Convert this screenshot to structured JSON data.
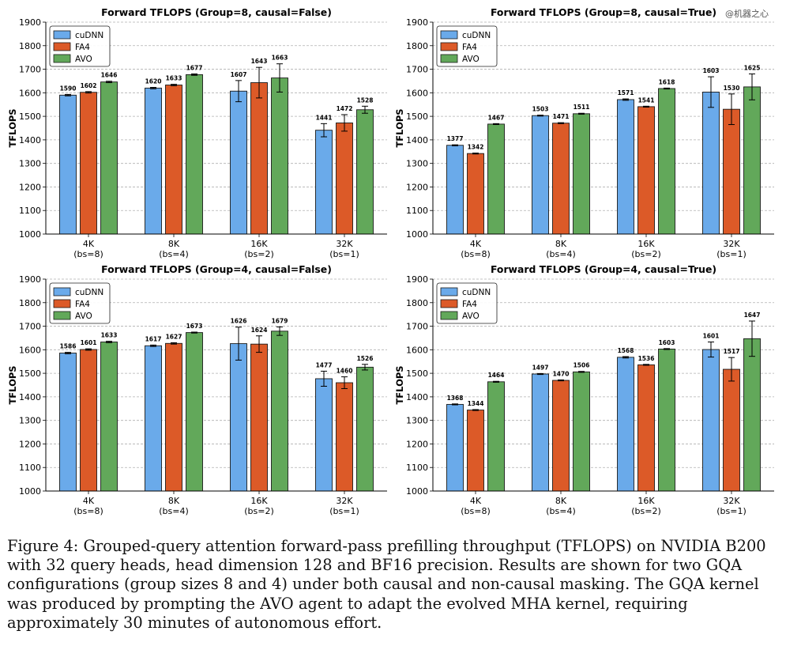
{
  "watermark": "@机器之心",
  "caption": "Figure 4: Grouped-query attention forward-pass prefilling throughput (TFLOPS) on NVIDIA B200 with 32 query heads, head dimension 128 and BF16 precision. Results are shown for two GQA configurations (group sizes 8 and 4) under both causal and non-causal masking. The GQA kernel was produced by prompting the AVO agent to adapt the evolved MHA kernel, requiring approximately 30 minutes of autonomous effort.",
  "colors": {
    "cuDNN": "#6aaaea",
    "FA4": "#dc5a28",
    "AVO": "#62a85a"
  },
  "chart_data": [
    {
      "type": "bar",
      "title": "Forward TFLOPS (Group=8, causal=False)",
      "ylabel": "TFLOPS",
      "ylim": [
        1000,
        1900
      ],
      "yticks": [
        "1000",
        "1100",
        "1200",
        "1300",
        "1400",
        "1500",
        "1600",
        "1700",
        "1800",
        "1900"
      ],
      "grid": "y-dashed",
      "legend": "top-left",
      "categories": [
        "4K",
        "8K",
        "16K",
        "32K"
      ],
      "subcategories": [
        "(bs=8)",
        "(bs=4)",
        "(bs=2)",
        "(bs=1)"
      ],
      "series": [
        {
          "name": "cuDNN",
          "values": [
            1590,
            1620,
            1607,
            1441
          ],
          "errors": [
            3,
            3,
            45,
            28
          ]
        },
        {
          "name": "FA4",
          "values": [
            1602,
            1633,
            1643,
            1472
          ],
          "errors": [
            3,
            3,
            65,
            35
          ]
        },
        {
          "name": "AVO",
          "values": [
            1646,
            1677,
            1663,
            1528
          ],
          "errors": [
            3,
            3,
            60,
            15
          ]
        }
      ]
    },
    {
      "type": "bar",
      "title": "Forward TFLOPS (Group=8, causal=True)",
      "ylabel": "TFLOPS",
      "ylim": [
        1000,
        1900
      ],
      "yticks": [
        "1000",
        "1100",
        "1200",
        "1300",
        "1400",
        "1500",
        "1600",
        "1700",
        "1800",
        "1900"
      ],
      "grid": "y-dashed",
      "legend": "top-left",
      "categories": [
        "4K",
        "8K",
        "16K",
        "32K"
      ],
      "subcategories": [
        "(bs=8)",
        "(bs=4)",
        "(bs=2)",
        "(bs=1)"
      ],
      "series": [
        {
          "name": "cuDNN",
          "values": [
            1377,
            1503,
            1571,
            1603
          ],
          "errors": [
            2,
            2,
            3,
            65
          ]
        },
        {
          "name": "FA4",
          "values": [
            1342,
            1471,
            1541,
            1530
          ],
          "errors": [
            2,
            2,
            2,
            65
          ]
        },
        {
          "name": "AVO",
          "values": [
            1467,
            1511,
            1618,
            1625
          ],
          "errors": [
            2,
            2,
            2,
            55
          ]
        }
      ]
    },
    {
      "type": "bar",
      "title": "Forward TFLOPS (Group=4, causal=False)",
      "ylabel": "TFLOPS",
      "ylim": [
        1000,
        1900
      ],
      "yticks": [
        "1000",
        "1100",
        "1200",
        "1300",
        "1400",
        "1500",
        "1600",
        "1700",
        "1800",
        "1900"
      ],
      "grid": "y-dashed",
      "legend": "top-left",
      "categories": [
        "4K",
        "8K",
        "16K",
        "32K"
      ],
      "subcategories": [
        "(bs=8)",
        "(bs=4)",
        "(bs=2)",
        "(bs=1)"
      ],
      "series": [
        {
          "name": "cuDNN",
          "values": [
            1586,
            1617,
            1626,
            1477
          ],
          "errors": [
            3,
            3,
            70,
            32
          ]
        },
        {
          "name": "FA4",
          "values": [
            1601,
            1627,
            1624,
            1460
          ],
          "errors": [
            3,
            3,
            35,
            25
          ]
        },
        {
          "name": "AVO",
          "values": [
            1633,
            1673,
            1679,
            1526
          ],
          "errors": [
            3,
            2,
            18,
            12
          ]
        }
      ]
    },
    {
      "type": "bar",
      "title": "Forward TFLOPS (Group=4, causal=True)",
      "ylabel": "TFLOPS",
      "ylim": [
        1000,
        1900
      ],
      "yticks": [
        "1000",
        "1100",
        "1200",
        "1300",
        "1400",
        "1500",
        "1600",
        "1700",
        "1800",
        "1900"
      ],
      "grid": "y-dashed",
      "legend": "top-left",
      "categories": [
        "4K",
        "8K",
        "16K",
        "32K"
      ],
      "subcategories": [
        "(bs=8)",
        "(bs=4)",
        "(bs=2)",
        "(bs=1)"
      ],
      "series": [
        {
          "name": "cuDNN",
          "values": [
            1368,
            1497,
            1568,
            1601
          ],
          "errors": [
            2,
            2,
            3,
            32
          ]
        },
        {
          "name": "FA4",
          "values": [
            1344,
            1470,
            1536,
            1517
          ],
          "errors": [
            2,
            2,
            2,
            50
          ]
        },
        {
          "name": "AVO",
          "values": [
            1464,
            1506,
            1603,
            1647
          ],
          "errors": [
            2,
            2,
            2,
            75
          ]
        }
      ]
    }
  ]
}
